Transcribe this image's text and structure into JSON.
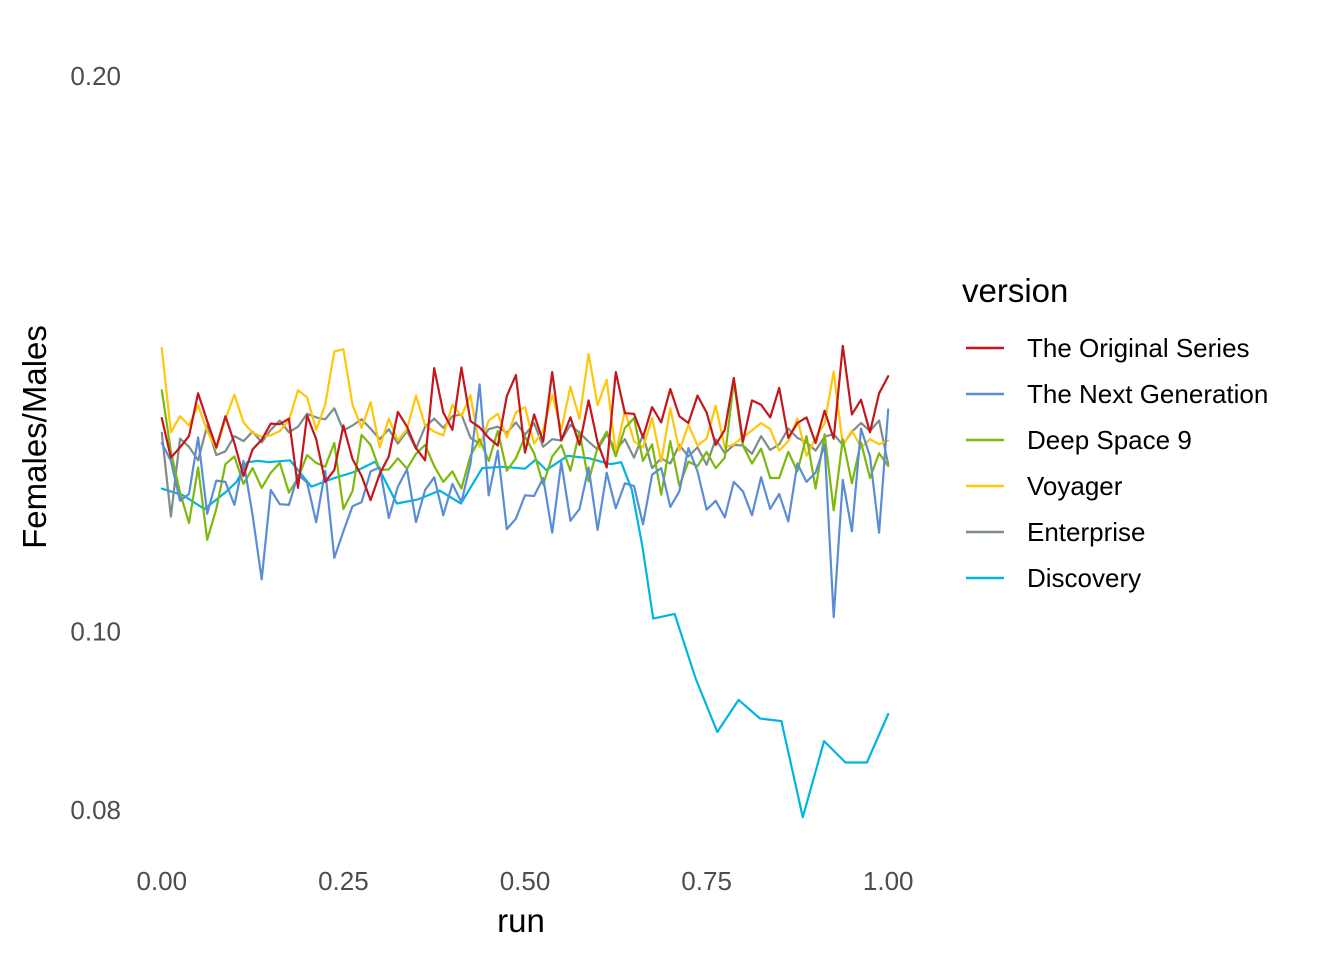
{
  "chart_data": {
    "type": "line",
    "xlabel": "run",
    "ylabel": "Females/Males",
    "x_ticks": [
      "0.00",
      "0.25",
      "0.50",
      "0.75",
      "1.00"
    ],
    "y_ticks": [
      "0.08",
      "0.10",
      "0.20"
    ],
    "y_scale": "log",
    "xlim": [
      -0.03,
      1.03
    ],
    "ylim": [
      0.0765,
      0.215
    ],
    "grid": false,
    "legend": {
      "title": "version",
      "placement": "right"
    },
    "series": [
      {
        "name": "The Original Series",
        "color": "#C4161C",
        "x": [
          0,
          0.0125,
          0.025,
          0.0375,
          0.05,
          0.0625,
          0.075,
          0.0875,
          0.1,
          0.1125,
          0.125,
          0.1375,
          0.15,
          0.1625,
          0.175,
          0.1875,
          0.2,
          0.2125,
          0.225,
          0.2375,
          0.25,
          0.2625,
          0.275,
          0.2875,
          0.3,
          0.3125,
          0.325,
          0.3375,
          0.35,
          0.3625,
          0.375,
          0.3875,
          0.4,
          0.4125,
          0.425,
          0.4375,
          0.45,
          0.4625,
          0.475,
          0.4875,
          0.5,
          0.5125,
          0.525,
          0.5375,
          0.55,
          0.5625,
          0.575,
          0.5875,
          0.6,
          0.6125,
          0.625,
          0.6375,
          0.65,
          0.6625,
          0.675,
          0.6875,
          0.7,
          0.7125,
          0.725,
          0.7375,
          0.75,
          0.7625,
          0.775,
          0.7875,
          0.8,
          0.8125,
          0.825,
          0.8375,
          0.85,
          0.8625,
          0.875,
          0.8875,
          0.9,
          0.9125,
          0.925,
          0.9375,
          0.95,
          0.9625,
          0.975,
          0.9875,
          1.0
        ],
        "values": [
          0.1305,
          0.1242,
          0.1258,
          0.1276,
          0.1346,
          0.13,
          0.1258,
          0.1308,
          0.1265,
          0.1214,
          0.1255,
          0.127,
          0.1296,
          0.1295,
          0.1304,
          0.1196,
          0.1309,
          0.1271,
          0.1205,
          0.1223,
          0.1293,
          0.124,
          0.1214,
          0.1178,
          0.1217,
          0.1244,
          0.1315,
          0.1291,
          0.1257,
          0.1238,
          0.1389,
          0.1314,
          0.1286,
          0.139,
          0.13,
          0.129,
          0.1273,
          0.1261,
          0.1341,
          0.1377,
          0.125,
          0.1311,
          0.1267,
          0.1382,
          0.1269,
          0.1306,
          0.1262,
          0.1334,
          0.1266,
          0.1227,
          0.1382,
          0.1313,
          0.1312,
          0.1274,
          0.1323,
          0.1298,
          0.1353,
          0.1308,
          0.1297,
          0.1342,
          0.1314,
          0.1262,
          0.1286,
          0.1372,
          0.1267,
          0.1334,
          0.1327,
          0.1306,
          0.1355,
          0.1273,
          0.1297,
          0.1306,
          0.1265,
          0.1317,
          0.1272,
          0.1428,
          0.1311,
          0.1335,
          0.1282,
          0.1346,
          0.1375
        ]
      },
      {
        "name": "The Next Generation",
        "color": "#5B8DD6",
        "x": [
          0,
          0.0125,
          0.025,
          0.0375,
          0.05,
          0.0625,
          0.075,
          0.0875,
          0.1,
          0.1125,
          0.125,
          0.1375,
          0.15,
          0.1625,
          0.175,
          0.1875,
          0.2,
          0.2125,
          0.225,
          0.2375,
          0.25,
          0.2625,
          0.275,
          0.2875,
          0.3,
          0.3125,
          0.325,
          0.3375,
          0.35,
          0.3625,
          0.375,
          0.3875,
          0.4,
          0.4125,
          0.425,
          0.4375,
          0.45,
          0.4625,
          0.475,
          0.4875,
          0.5,
          0.5125,
          0.525,
          0.5375,
          0.55,
          0.5625,
          0.575,
          0.5875,
          0.6,
          0.6125,
          0.625,
          0.6375,
          0.65,
          0.6625,
          0.675,
          0.6875,
          0.7,
          0.7125,
          0.725,
          0.7375,
          0.75,
          0.7625,
          0.775,
          0.7875,
          0.8,
          0.8125,
          0.825,
          0.8375,
          0.85,
          0.8625,
          0.875,
          0.8875,
          0.9,
          0.9125,
          0.925,
          0.9375,
          0.95,
          0.9625,
          0.975,
          0.9875,
          1.0
        ],
        "values": [
          0.1265,
          0.1237,
          0.1177,
          0.1187,
          0.1274,
          0.1158,
          0.1207,
          0.1205,
          0.1171,
          0.1237,
          0.1156,
          0.1067,
          0.1193,
          0.1172,
          0.1171,
          0.1216,
          0.1204,
          0.1146,
          0.1222,
          0.1096,
          0.1133,
          0.1169,
          0.1175,
          0.1221,
          0.1227,
          0.1152,
          0.1198,
          0.1224,
          0.1146,
          0.1193,
          0.1212,
          0.1156,
          0.1202,
          0.1175,
          0.1233,
          0.1361,
          0.1185,
          0.1253,
          0.1136,
          0.1151,
          0.1185,
          0.1184,
          0.1211,
          0.1131,
          0.1235,
          0.1148,
          0.1165,
          0.1227,
          0.1135,
          0.1219,
          0.1166,
          0.1203,
          0.1199,
          0.1143,
          0.1216,
          0.1226,
          0.1168,
          0.1191,
          0.1257,
          0.1221,
          0.1164,
          0.1177,
          0.1153,
          0.1205,
          0.1191,
          0.1156,
          0.1212,
          0.1165,
          0.1187,
          0.1147,
          0.1233,
          0.1205,
          0.1219,
          0.1262,
          0.1018,
          0.1208,
          0.1133,
          0.1288,
          0.1244,
          0.1131,
          0.1319
        ]
      },
      {
        "name": "Deep Space 9",
        "color": "#7DB80E",
        "x": [
          0,
          0.0125,
          0.025,
          0.0375,
          0.05,
          0.0625,
          0.075,
          0.0875,
          0.1,
          0.1125,
          0.125,
          0.1375,
          0.15,
          0.1625,
          0.175,
          0.1875,
          0.2,
          0.2125,
          0.225,
          0.2375,
          0.25,
          0.2625,
          0.275,
          0.2875,
          0.3,
          0.3125,
          0.325,
          0.3375,
          0.35,
          0.3625,
          0.375,
          0.3875,
          0.4,
          0.4125,
          0.425,
          0.4375,
          0.45,
          0.4625,
          0.475,
          0.4875,
          0.5,
          0.5125,
          0.525,
          0.5375,
          0.55,
          0.5625,
          0.575,
          0.5875,
          0.6,
          0.6125,
          0.625,
          0.6375,
          0.65,
          0.6625,
          0.675,
          0.6875,
          0.7,
          0.7125,
          0.725,
          0.7375,
          0.75,
          0.7625,
          0.775,
          0.7875,
          0.8,
          0.8125,
          0.825,
          0.8375,
          0.85,
          0.8625,
          0.875,
          0.8875,
          0.9,
          0.9125,
          0.925,
          0.9375,
          0.95,
          0.9625,
          0.975,
          0.9875,
          1.0
        ],
        "values": [
          0.1351,
          0.1252,
          0.1189,
          0.1145,
          0.1227,
          0.1121,
          0.1165,
          0.1232,
          0.1244,
          0.1202,
          0.1226,
          0.1196,
          0.1219,
          0.1234,
          0.1189,
          0.1211,
          0.1246,
          0.1234,
          0.1228,
          0.1265,
          0.1165,
          0.1191,
          0.1278,
          0.1262,
          0.1223,
          0.1224,
          0.1241,
          0.1225,
          0.1248,
          0.1262,
          0.1229,
          0.1205,
          0.1221,
          0.1195,
          0.1245,
          0.1271,
          0.1237,
          0.1284,
          0.1222,
          0.1241,
          0.1275,
          0.1249,
          0.1201,
          0.1244,
          0.1262,
          0.1222,
          0.1283,
          0.1206,
          0.1258,
          0.1283,
          0.1244,
          0.1289,
          0.1305,
          0.1237,
          0.1263,
          0.1186,
          0.1268,
          0.1199,
          0.1236,
          0.1229,
          0.1251,
          0.1226,
          0.1242,
          0.1367,
          0.1261,
          0.1233,
          0.1256,
          0.1211,
          0.1211,
          0.1251,
          0.1221,
          0.1276,
          0.1195,
          0.1279,
          0.1163,
          0.1271,
          0.1203,
          0.1266,
          0.1211,
          0.1249,
          0.1229
        ]
      },
      {
        "name": "Voyager",
        "color": "#FFC60A",
        "x": [
          0,
          0.0125,
          0.025,
          0.0375,
          0.05,
          0.0625,
          0.075,
          0.0875,
          0.1,
          0.1125,
          0.125,
          0.1375,
          0.15,
          0.1625,
          0.175,
          0.1875,
          0.2,
          0.2125,
          0.225,
          0.2375,
          0.25,
          0.2625,
          0.275,
          0.2875,
          0.3,
          0.3125,
          0.325,
          0.3375,
          0.35,
          0.3625,
          0.375,
          0.3875,
          0.4,
          0.4125,
          0.425,
          0.4375,
          0.45,
          0.4625,
          0.475,
          0.4875,
          0.5,
          0.5125,
          0.525,
          0.5375,
          0.55,
          0.5625,
          0.575,
          0.5875,
          0.6,
          0.6125,
          0.625,
          0.6375,
          0.65,
          0.6625,
          0.675,
          0.6875,
          0.7,
          0.7125,
          0.725,
          0.7375,
          0.75,
          0.7625,
          0.775,
          0.7875,
          0.8,
          0.8125,
          0.825,
          0.8375,
          0.85,
          0.8625,
          0.875,
          0.8875,
          0.9,
          0.9125,
          0.925,
          0.9375,
          0.95,
          0.9625,
          0.975,
          0.9875,
          1.0
        ],
        "values": [
          0.1424,
          0.1282,
          0.1308,
          0.1293,
          0.1326,
          0.1284,
          0.1256,
          0.1303,
          0.1344,
          0.1298,
          0.1281,
          0.1275,
          0.1277,
          0.1284,
          0.1301,
          0.1351,
          0.1339,
          0.1286,
          0.1327,
          0.1418,
          0.1422,
          0.1327,
          0.1289,
          0.1331,
          0.1258,
          0.1304,
          0.1269,
          0.1287,
          0.1342,
          0.1293,
          0.1283,
          0.1277,
          0.1327,
          0.1308,
          0.1343,
          0.1259,
          0.1301,
          0.1312,
          0.1274,
          0.1314,
          0.1323,
          0.1264,
          0.1285,
          0.1344,
          0.1286,
          0.1357,
          0.1304,
          0.1414,
          0.1326,
          0.1369,
          0.1249,
          0.1317,
          0.1268,
          0.1258,
          0.1305,
          0.1236,
          0.1321,
          0.1253,
          0.1294,
          0.1261,
          0.1272,
          0.1325,
          0.1258,
          0.1263,
          0.1274,
          0.1285,
          0.1297,
          0.1287,
          0.1253,
          0.1268,
          0.1304,
          0.1245,
          0.1273,
          0.1296,
          0.1383,
          0.1261,
          0.1285,
          0.1258,
          0.1271,
          0.1263,
          0.1269
        ]
      },
      {
        "name": "Enterprise",
        "color": "#7F8C8D",
        "x": [
          0,
          0.0125,
          0.025,
          0.0375,
          0.05,
          0.0625,
          0.075,
          0.0875,
          0.1,
          0.1125,
          0.125,
          0.1375,
          0.15,
          0.1625,
          0.175,
          0.1875,
          0.2,
          0.2125,
          0.225,
          0.2375,
          0.25,
          0.2625,
          0.275,
          0.2875,
          0.3,
          0.3125,
          0.325,
          0.3375,
          0.35,
          0.3625,
          0.375,
          0.3875,
          0.4,
          0.4125,
          0.425,
          0.4375,
          0.45,
          0.4625,
          0.475,
          0.4875,
          0.5,
          0.5125,
          0.525,
          0.5375,
          0.55,
          0.5625,
          0.575,
          0.5875,
          0.6,
          0.6125,
          0.625,
          0.6375,
          0.65,
          0.6625,
          0.675,
          0.6875,
          0.7,
          0.7125,
          0.725,
          0.7375,
          0.75,
          0.7625,
          0.775,
          0.7875,
          0.8,
          0.8125,
          0.825,
          0.8375,
          0.85,
          0.8625,
          0.875,
          0.8875,
          0.9,
          0.9125,
          0.925,
          0.9375,
          0.95,
          0.9625,
          0.975,
          0.9875,
          1.0
        ],
        "values": [
          0.1281,
          0.1154,
          0.1272,
          0.1259,
          0.1238,
          0.1293,
          0.1246,
          0.1252,
          0.1276,
          0.1268,
          0.1283,
          0.1266,
          0.1286,
          0.1301,
          0.1282,
          0.1291,
          0.1312,
          0.1306,
          0.1303,
          0.1321,
          0.1285,
          0.1293,
          0.1303,
          0.1288,
          0.1271,
          0.1287,
          0.1264,
          0.1284,
          0.1256,
          0.1291,
          0.1304,
          0.1289,
          0.1308,
          0.1311,
          0.1273,
          0.1264,
          0.1287,
          0.1291,
          0.1281,
          0.1298,
          0.1278,
          0.1297,
          0.1259,
          0.1271,
          0.1269,
          0.1294,
          0.1281,
          0.1267,
          0.1255,
          0.1279,
          0.1254,
          0.1271,
          0.1242,
          0.1278,
          0.1226,
          0.1241,
          0.1233,
          0.1262,
          0.1244,
          0.1258,
          0.1231,
          0.1271,
          0.1249,
          0.1262,
          0.1261,
          0.1248,
          0.1276,
          0.1254,
          0.1263,
          0.1288,
          0.1273,
          0.1266,
          0.1253,
          0.1275,
          0.1279,
          0.1262,
          0.1283,
          0.1297,
          0.1284,
          0.1301,
          0.1232
        ]
      },
      {
        "name": "Discovery",
        "color": "#00B5E2",
        "x": [
          0,
          0.0294,
          0.0588,
          0.0882,
          0.1029,
          0.1176,
          0.1324,
          0.1471,
          0.1765,
          0.2059,
          0.2353,
          0.2647,
          0.2941,
          0.3235,
          0.3529,
          0.3824,
          0.4118,
          0.4412,
          0.4706,
          0.5,
          0.5147,
          0.5294,
          0.5588,
          0.5882,
          0.6176,
          0.6324,
          0.6471,
          0.6618,
          0.6765,
          0.7059,
          0.7353,
          0.7647,
          0.7941,
          0.8235,
          0.8529,
          0.8824,
          0.9118,
          0.9412,
          0.9706,
          1.0
        ],
        "values": [
          0.1195,
          0.1185,
          0.1165,
          0.119,
          0.1205,
          0.1235,
          0.1237,
          0.1235,
          0.1238,
          0.1198,
          0.121,
          0.122,
          0.1236,
          0.1173,
          0.1179,
          0.1192,
          0.1173,
          0.1226,
          0.1228,
          0.1225,
          0.1239,
          0.1223,
          0.1245,
          0.1241,
          0.1232,
          0.1235,
          0.1193,
          0.1111,
          0.1016,
          0.1022,
          0.0942,
          0.0882,
          0.0918,
          0.0897,
          0.0894,
          0.0793,
          0.0872,
          0.0849,
          0.0849,
          0.0902
        ]
      }
    ]
  }
}
